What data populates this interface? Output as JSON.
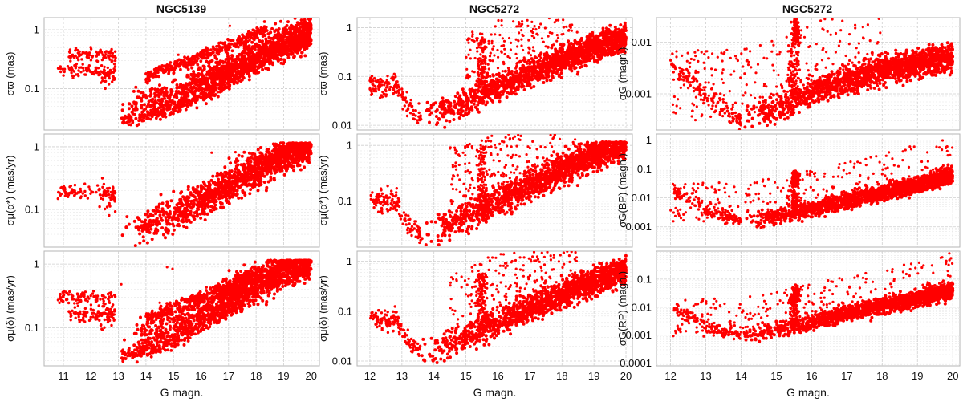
{
  "figure": {
    "column_titles": [
      "NGC5139",
      "NGC5272",
      "NGC5272"
    ],
    "xlabel": "G magn."
  },
  "colors": {
    "points": "#ff0000",
    "frame": "#b5b5b5",
    "grid": "#d0d0d0"
  },
  "chart_data": [
    {
      "id": "ngc5139-parallax",
      "type": "scatter",
      "column": 0,
      "row": 0,
      "title": "NGC5139",
      "ylabel": "σϖ (mas)",
      "xlabel": "",
      "xlim": [
        10.3,
        20.3
      ],
      "ylim": [
        0.02,
        1.6
      ],
      "yscale": "log",
      "yticks": [
        0.1,
        1
      ],
      "ytick_labels": [
        "0.1",
        "1"
      ],
      "xticks": [
        11,
        12,
        13,
        14,
        15,
        16,
        17,
        18,
        19,
        20
      ],
      "show_xtick_labels": false,
      "model": {
        "bright_branches": [
          [
            10.8,
            12.9,
            0.2
          ],
          [
            11.2,
            12.9,
            0.38
          ]
        ],
        "bright_dip": [
          0.16,
          0.06
        ],
        "jump_mag": 13,
        "trend": [
          [
            13.1,
            0.045
          ],
          [
            15,
            0.07
          ],
          [
            17,
            0.2
          ],
          [
            19,
            0.6
          ],
          [
            20,
            0.9
          ]
        ],
        "upper_branch": [
          [
            14,
            0.16
          ],
          [
            16,
            0.35
          ],
          [
            18,
            0.85
          ],
          [
            18.4,
            1.1
          ]
        ],
        "lower_branch": [
          [
            13.1,
            0.028
          ],
          [
            15,
            0.045
          ],
          [
            17,
            0.13
          ],
          [
            19,
            0.45
          ],
          [
            20,
            0.75
          ]
        ],
        "outliers": 10,
        "density": 1500
      }
    },
    {
      "id": "ngc5139-pmra",
      "type": "scatter",
      "column": 0,
      "row": 1,
      "ylabel": "σμ(α*) (mas/yr)",
      "xlabel": "",
      "xlim": [
        10.3,
        20.3
      ],
      "ylim": [
        0.025,
        1.6
      ],
      "yscale": "log",
      "yticks": [
        0.1,
        1
      ],
      "ytick_labels": [
        "0.1",
        "1"
      ],
      "xticks": [
        11,
        12,
        13,
        14,
        15,
        16,
        17,
        18,
        19,
        20
      ],
      "show_xtick_labels": false,
      "model": {
        "bright_branches": [
          [
            10.8,
            12.9,
            0.19
          ]
        ],
        "bright_dip": [
          0.15,
          0.08
        ],
        "jump_mag": 13,
        "trend": [
          [
            13.1,
            0.04
          ],
          [
            15,
            0.08
          ],
          [
            17,
            0.25
          ],
          [
            19,
            0.75
          ],
          [
            20,
            1.1
          ]
        ],
        "upper_branch": [],
        "lower_branch": [],
        "saturate": 1.15,
        "outliers": 4,
        "density": 1500
      }
    },
    {
      "id": "ngc5139-pmdec",
      "type": "scatter",
      "column": 0,
      "row": 2,
      "ylabel": "σμ(δ) (mas/yr)",
      "xlabel": "G magn.",
      "xlim": [
        10.3,
        20.3
      ],
      "ylim": [
        0.025,
        1.6
      ],
      "yscale": "log",
      "yticks": [
        0.1,
        1
      ],
      "ytick_labels": [
        "0.1",
        "1"
      ],
      "xticks": [
        11,
        12,
        13,
        14,
        15,
        16,
        17,
        18,
        19,
        20
      ],
      "xtick_labels": [
        "11",
        "12",
        "13",
        "14",
        "15",
        "16",
        "17",
        "18",
        "19",
        "20"
      ],
      "show_xtick_labels": true,
      "model": {
        "bright_branches": [
          [
            10.8,
            12.9,
            0.3
          ],
          [
            11.2,
            12.9,
            0.16
          ]
        ],
        "bright_dip": [
          0.15,
          0.06
        ],
        "jump_mag": 13,
        "trend": [
          [
            13.1,
            0.05
          ],
          [
            15,
            0.1
          ],
          [
            17,
            0.3
          ],
          [
            19,
            0.85
          ],
          [
            20,
            1.1
          ]
        ],
        "upper_branch": [
          [
            14,
            0.14
          ],
          [
            16,
            0.3
          ],
          [
            18,
            0.7
          ]
        ],
        "lower_branch": [
          [
            13.1,
            0.035
          ],
          [
            15,
            0.06
          ],
          [
            17,
            0.18
          ],
          [
            19,
            0.6
          ]
        ],
        "saturate": 1.15,
        "outliers": 8,
        "density": 1500
      }
    },
    {
      "id": "ngc5272-parallax",
      "type": "scatter",
      "column": 1,
      "row": 0,
      "title": "NGC5272",
      "ylabel": "σϖ (mas)",
      "xlabel": "",
      "xlim": [
        11.6,
        20.2
      ],
      "ylim": [
        0.008,
        1.6
      ],
      "yscale": "log",
      "yticks": [
        0.01,
        0.1,
        1
      ],
      "ytick_labels": [
        "0.01",
        "0.1",
        "1"
      ],
      "xticks": [
        12,
        13,
        14,
        15,
        16,
        17,
        18,
        19,
        20
      ],
      "show_xtick_labels": false,
      "model": {
        "bright_branches": [],
        "start": [
          [
            12.0,
            0.06
          ],
          [
            12.8,
            0.065
          ],
          [
            13.3,
            0.02
          ],
          [
            13.6,
            0.015
          ]
        ],
        "trend": [
          [
            13.6,
            0.015
          ],
          [
            15,
            0.03
          ],
          [
            17,
            0.12
          ],
          [
            19,
            0.4
          ],
          [
            20,
            0.6
          ]
        ],
        "scatter_band": [
          15.0,
          18.5
        ],
        "spike_mag": 15.5,
        "outliers": 260,
        "density": 1500
      }
    },
    {
      "id": "ngc5272-pmra",
      "type": "scatter",
      "column": 1,
      "row": 1,
      "ylabel": "σμ(α*) (mas/yr)",
      "xlabel": "",
      "xlim": [
        11.6,
        20.2
      ],
      "ylim": [
        0.015,
        1.6
      ],
      "yscale": "log",
      "yticks": [
        0.1,
        1
      ],
      "ytick_labels": [
        "0.1",
        "1"
      ],
      "xticks": [
        12,
        13,
        14,
        15,
        16,
        17,
        18,
        19,
        20
      ],
      "show_xtick_labels": false,
      "model": {
        "bright_branches": [],
        "start": [
          [
            12.0,
            0.1
          ],
          [
            12.8,
            0.1
          ],
          [
            13.2,
            0.04
          ],
          [
            13.6,
            0.025
          ]
        ],
        "trend": [
          [
            13.6,
            0.025
          ],
          [
            15,
            0.05
          ],
          [
            17,
            0.2
          ],
          [
            19,
            0.7
          ],
          [
            20,
            1.1
          ]
        ],
        "saturate": 1.15,
        "scatter_band": [
          14.5,
          18.5
        ],
        "spike_mag": 15.5,
        "outliers": 300,
        "density": 1500
      }
    },
    {
      "id": "ngc5272-pmdec",
      "type": "scatter",
      "column": 1,
      "row": 2,
      "ylabel": "σμ(δ) (mas/yr)",
      "xlabel": "G magn.",
      "xlim": [
        11.6,
        20.2
      ],
      "ylim": [
        0.008,
        1.6
      ],
      "yscale": "log",
      "yticks": [
        0.01,
        0.1,
        1
      ],
      "ytick_labels": [
        "0.01",
        "0.1",
        "1"
      ],
      "xticks": [
        12,
        13,
        14,
        15,
        16,
        17,
        18,
        19,
        20
      ],
      "xtick_labels": [
        "12",
        "13",
        "14",
        "15",
        "16",
        "17",
        "18",
        "19",
        "20"
      ],
      "show_xtick_labels": true,
      "model": {
        "bright_branches": [],
        "start": [
          [
            12.0,
            0.07
          ],
          [
            12.8,
            0.07
          ],
          [
            13.3,
            0.02
          ],
          [
            13.6,
            0.015
          ]
        ],
        "trend": [
          [
            13.6,
            0.015
          ],
          [
            15,
            0.03
          ],
          [
            17,
            0.12
          ],
          [
            19,
            0.4
          ],
          [
            20,
            0.65
          ]
        ],
        "scatter_band": [
          14.5,
          18.5
        ],
        "spike_mag": 15.5,
        "outliers": 230,
        "density": 1500
      }
    },
    {
      "id": "ngc5272-sigma-g",
      "type": "scatter",
      "column": 2,
      "row": 0,
      "title": "NGC5272",
      "ylabel": "σG (magn.)",
      "xlabel": "",
      "xlim": [
        11.6,
        20.2
      ],
      "ylim": [
        0.0002,
        0.03
      ],
      "yscale": "log",
      "yticks": [
        0.001,
        0.01
      ],
      "ytick_labels": [
        "0.001",
        "0.01"
      ],
      "xticks": [
        12,
        13,
        14,
        15,
        16,
        17,
        18,
        19,
        20
      ],
      "show_xtick_labels": false,
      "model": {
        "bright_branches": [],
        "start": [
          [
            12.0,
            0.004
          ],
          [
            13.0,
            0.001
          ],
          [
            14.0,
            0.0003
          ]
        ],
        "trend": [
          [
            14,
            0.0003
          ],
          [
            15,
            0.0005
          ],
          [
            16.5,
            0.0015
          ],
          [
            18,
            0.003
          ],
          [
            20,
            0.005
          ]
        ],
        "scatter_band": [
          12.0,
          18.0
        ],
        "spike_mag": 15.5,
        "cluster": [
          15.55,
          0.015
        ],
        "outliers": 260,
        "density": 1500
      }
    },
    {
      "id": "ngc5272-sigma-bp",
      "type": "scatter",
      "column": 2,
      "row": 1,
      "ylabel": "σG(BP) (magn.)",
      "xlabel": "",
      "xlim": [
        11.6,
        20.2
      ],
      "ylim": [
        0.0002,
        1.6
      ],
      "yscale": "log",
      "yticks": [
        0.001,
        0.01,
        0.1,
        1
      ],
      "ytick_labels": [
        "0.001",
        "0.01",
        "0.1",
        "1"
      ],
      "xticks": [
        12,
        13,
        14,
        15,
        16,
        17,
        18,
        19,
        20
      ],
      "show_xtick_labels": false,
      "model": {
        "bright_branches": [],
        "start": [
          [
            12.1,
            0.02
          ],
          [
            13,
            0.004
          ],
          [
            14,
            0.0015
          ]
        ],
        "trend": [
          [
            14,
            0.0015
          ],
          [
            15.5,
            0.003
          ],
          [
            17,
            0.008
          ],
          [
            18.5,
            0.02
          ],
          [
            20,
            0.06
          ]
        ],
        "scatter_band": [
          12.0,
          20.0
        ],
        "spike_mag": 15.5,
        "cluster": [
          15.55,
          0.05
        ],
        "outliers": 280,
        "density": 1500
      }
    },
    {
      "id": "ngc5272-sigma-rp",
      "type": "scatter",
      "column": 2,
      "row": 2,
      "ylabel": "σG(RP) (magn.)",
      "xlabel": "G magn.",
      "xlim": [
        11.6,
        20.2
      ],
      "ylim": [
        8e-05,
        1.0
      ],
      "yscale": "log",
      "yticks": [
        0.0001,
        0.001,
        0.01,
        0.1
      ],
      "ytick_labels": [
        "0.0001",
        "0.001",
        "0.01",
        "0.1"
      ],
      "xticks": [
        12,
        13,
        14,
        15,
        16,
        17,
        18,
        19,
        20
      ],
      "xtick_labels": [
        "12",
        "13",
        "14",
        "15",
        "16",
        "17",
        "18",
        "19",
        "20"
      ],
      "show_xtick_labels": true,
      "model": {
        "bright_branches": [],
        "start": [
          [
            12.1,
            0.01
          ],
          [
            13,
            0.002
          ],
          [
            14,
            0.0009
          ]
        ],
        "trend": [
          [
            14,
            0.0009
          ],
          [
            15.5,
            0.002
          ],
          [
            17,
            0.006
          ],
          [
            18.5,
            0.015
          ],
          [
            20,
            0.04
          ]
        ],
        "scatter_band": [
          12.0,
          20.0
        ],
        "spike_mag": 15.5,
        "cluster": [
          15.55,
          0.03
        ],
        "outliers": 280,
        "density": 1500
      }
    }
  ]
}
